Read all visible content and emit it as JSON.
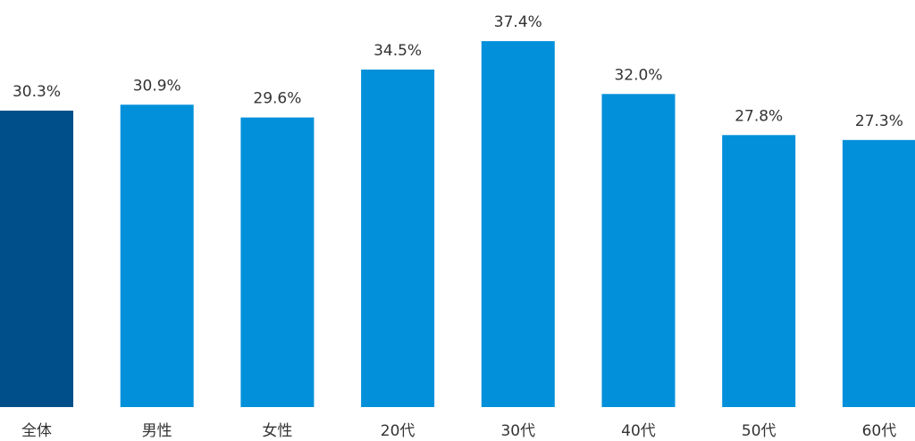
{
  "colors": {
    "highlight": "#004F8A",
    "bar": "#0290DA",
    "text": "#333333",
    "background": "#FFFFFF"
  },
  "chart_data": {
    "type": "bar",
    "title": "",
    "xlabel": "",
    "ylabel": "",
    "unit": "%",
    "categories": [
      "全体",
      "男性",
      "女性",
      "20代",
      "30代",
      "40代",
      "50代",
      "60代"
    ],
    "values": [
      30.3,
      30.9,
      29.6,
      34.5,
      37.4,
      32.0,
      27.8,
      27.3
    ],
    "value_labels": [
      "30.3%",
      "30.9%",
      "29.6%",
      "34.5%",
      "37.4%",
      "32.0%",
      "27.8%",
      "27.3%"
    ],
    "highlight_index": 0,
    "ylim": [
      0,
      38
    ],
    "grid": false,
    "legend": "none"
  }
}
